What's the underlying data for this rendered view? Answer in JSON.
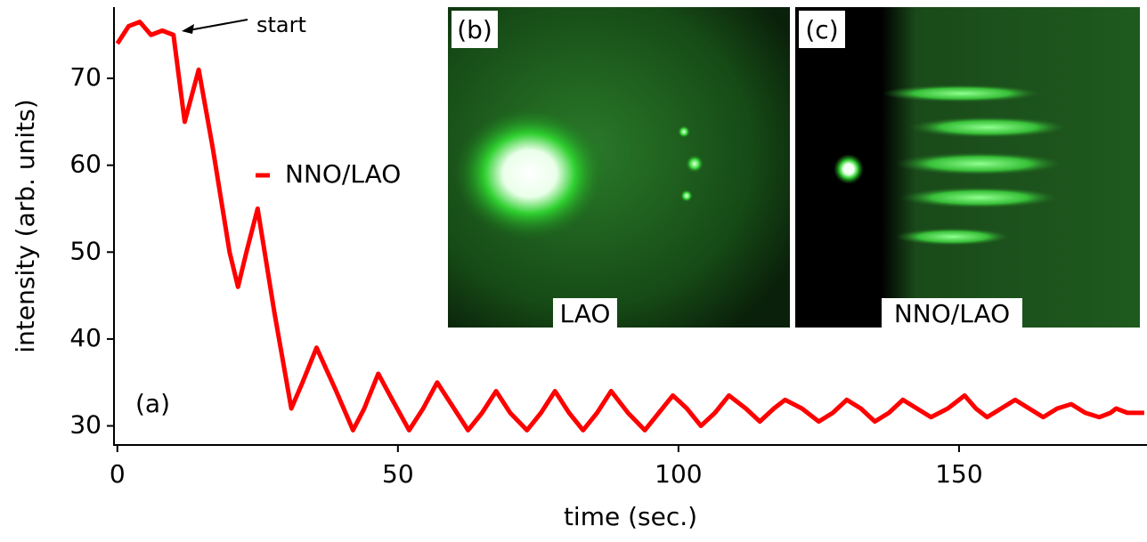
{
  "chart_data": {
    "type": "line",
    "x_label": "time (sec.)",
    "y_label": "intensity (arb. units)",
    "xlim": [
      -0.6,
      183.5
    ],
    "ylim": [
      27.8,
      78.2
    ],
    "xticks": [
      0,
      50,
      100,
      150
    ],
    "yticks": [
      30,
      40,
      50,
      60,
      70
    ],
    "series": [
      {
        "name": "NNO/LAO",
        "color": "#ff0000",
        "x": [
          0,
          2,
          4,
          6,
          8,
          10,
          11,
          12,
          14.5,
          17,
          20,
          21.5,
          23,
          25,
          28,
          31,
          33,
          35.5,
          39,
          42,
          44,
          46.5,
          49,
          52,
          54.5,
          57,
          60,
          62.5,
          65,
          67.5,
          70,
          73,
          75.5,
          78,
          80.5,
          83,
          85.5,
          88,
          91,
          94,
          96.5,
          99,
          101.5,
          104,
          106.5,
          109,
          112,
          114.5,
          117,
          119,
          122,
          125,
          127.5,
          130,
          132.5,
          135,
          137.5,
          140,
          142.5,
          145,
          148,
          151,
          153,
          155,
          157.5,
          160,
          162.5,
          165,
          167.5,
          170,
          172.5,
          175,
          177,
          178,
          180,
          183
        ],
        "values": [
          74,
          76,
          76.5,
          75,
          75.5,
          75,
          70,
          65,
          71,
          62,
          50,
          46,
          50,
          55,
          43,
          32,
          35,
          39,
          34,
          29.5,
          32,
          36,
          33,
          29.5,
          32,
          35,
          32,
          29.5,
          31.5,
          34,
          31.5,
          29.5,
          31.5,
          34,
          31.5,
          29.5,
          31.5,
          34,
          31.5,
          29.5,
          31.5,
          33.5,
          32,
          30,
          31.5,
          33.5,
          32,
          30.5,
          32,
          33,
          32,
          30.5,
          31.5,
          33,
          32,
          30.5,
          31.5,
          33,
          32,
          31,
          32,
          33.5,
          32,
          31,
          32,
          33,
          32,
          31,
          32,
          32.5,
          31.5,
          31,
          31.5,
          32,
          31.5,
          31.5
        ]
      }
    ],
    "annotations": [
      "start",
      "(a)"
    ],
    "insets": [
      {
        "label": "(b)",
        "caption": "LAO"
      },
      {
        "label": "(c)",
        "caption": "NNO/LAO"
      }
    ]
  }
}
